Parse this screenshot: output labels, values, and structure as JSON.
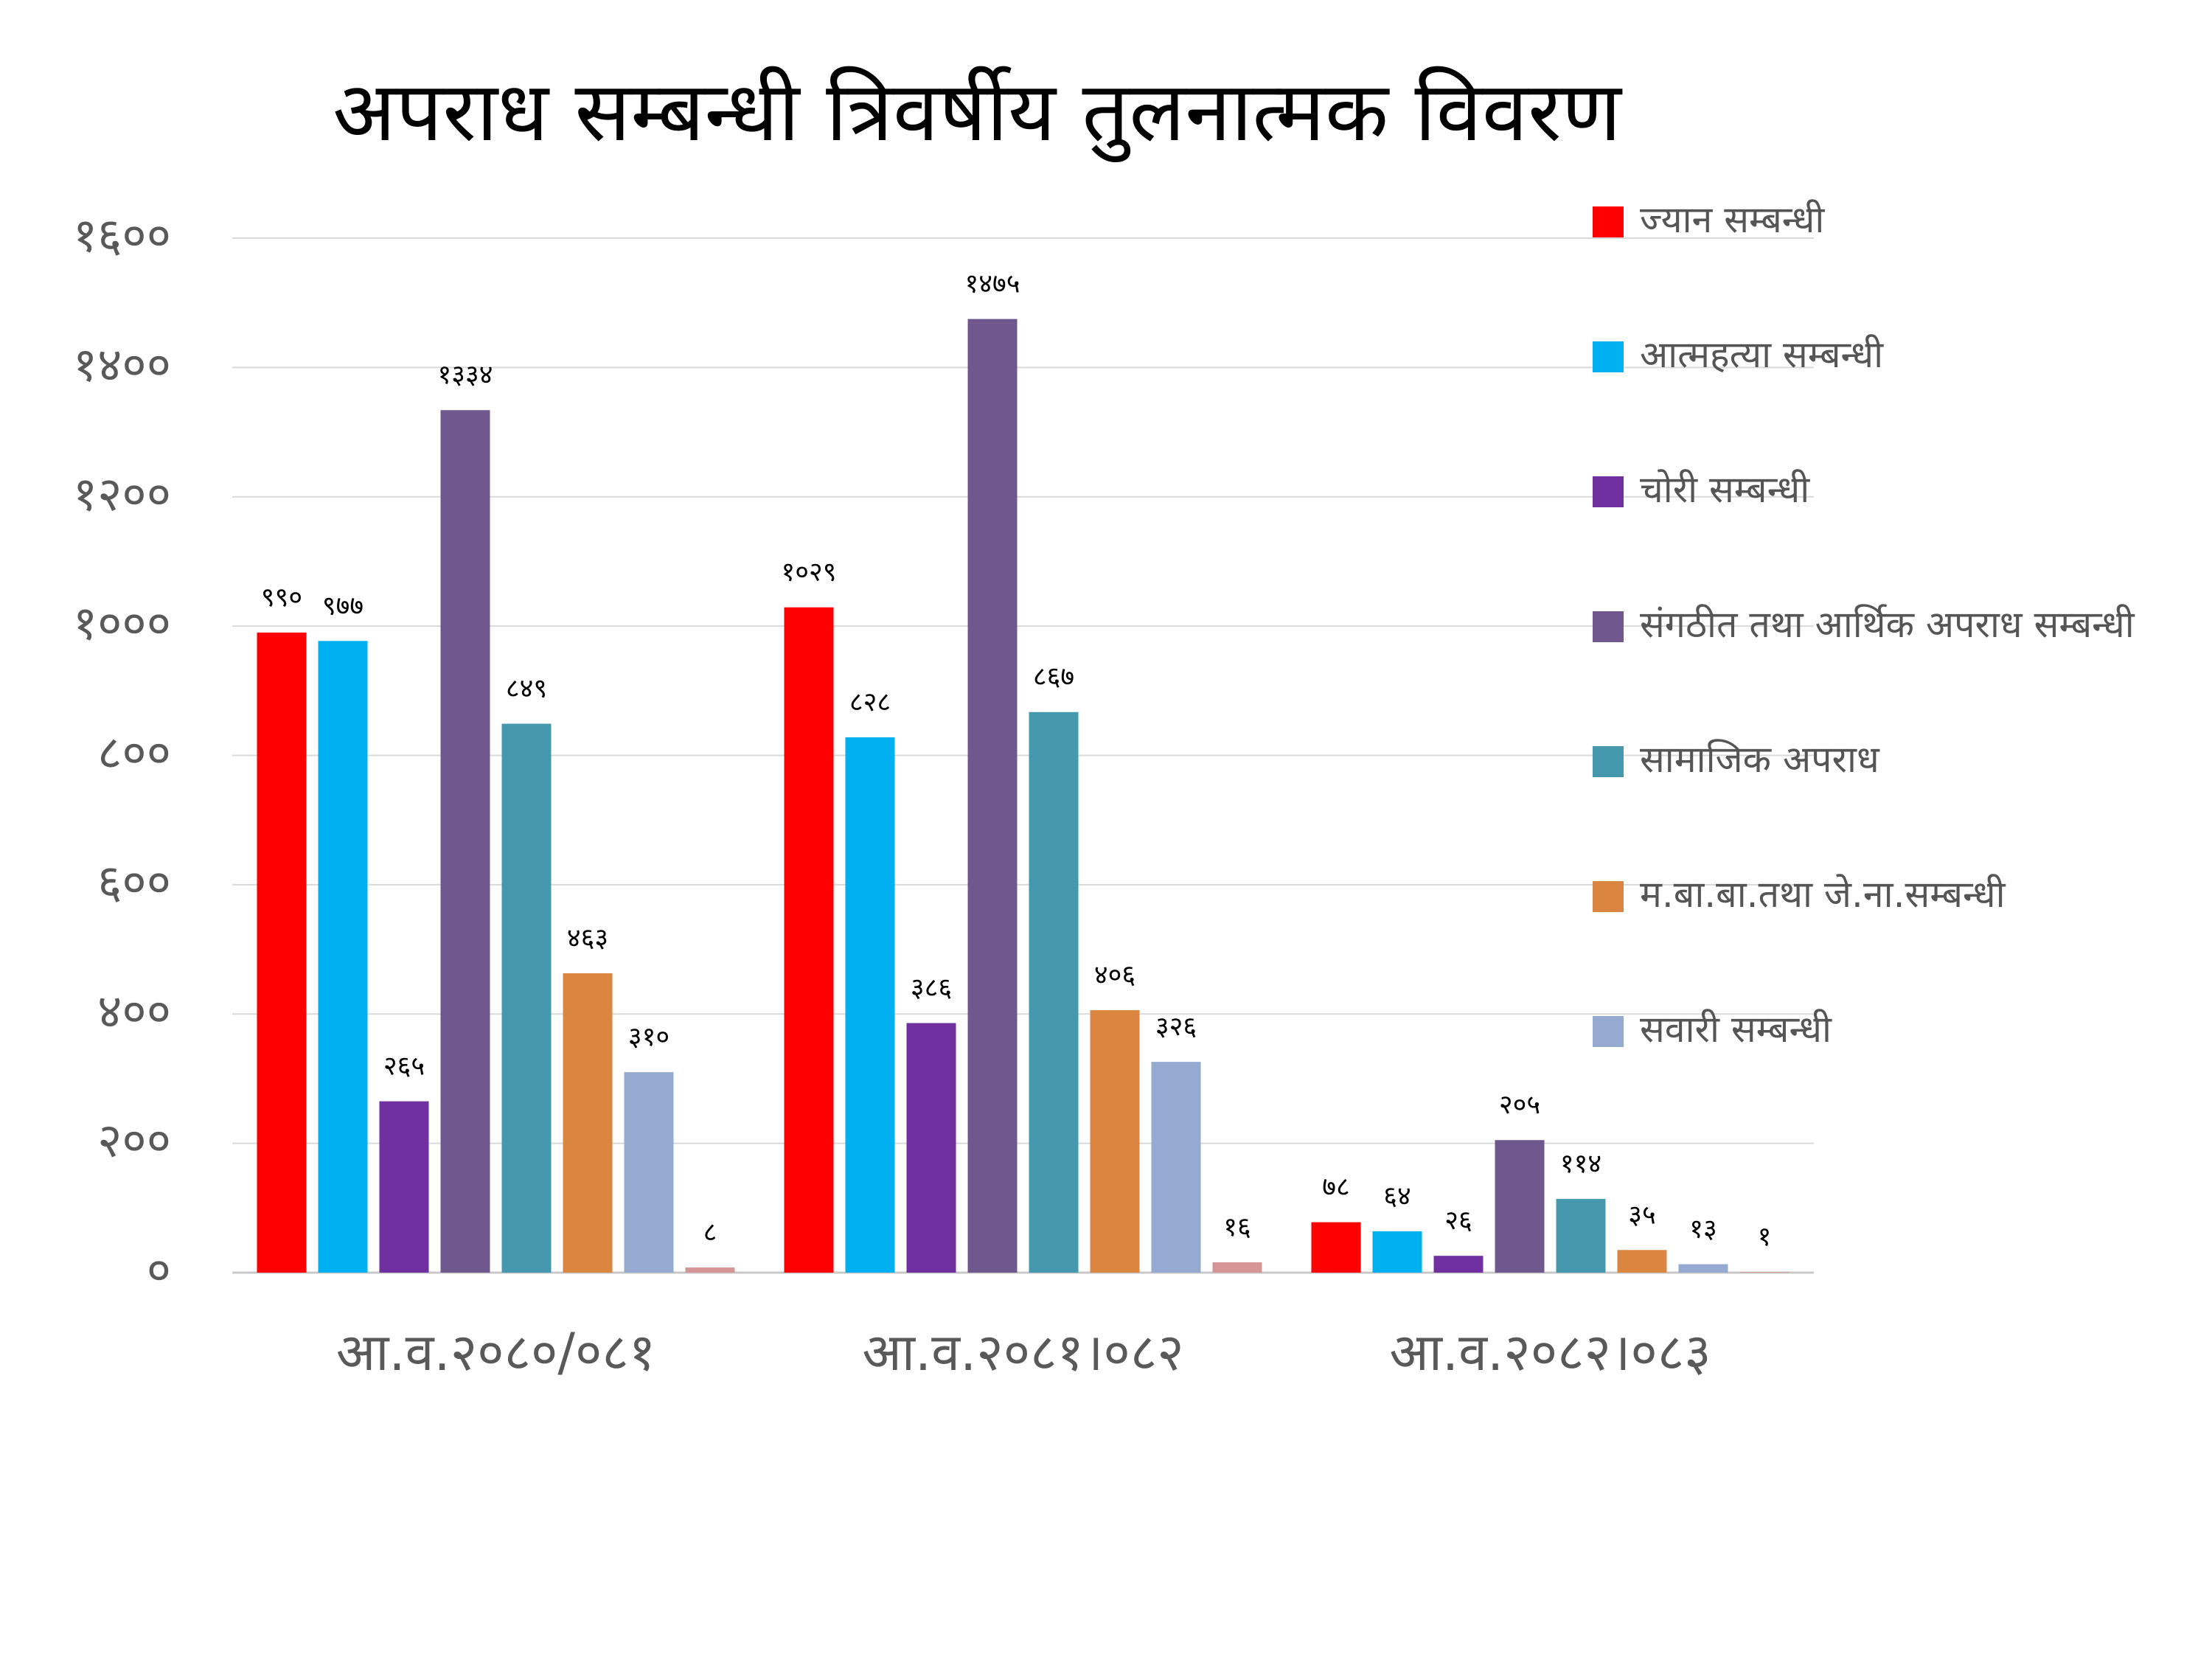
{
  "chart_data": {
    "type": "bar",
    "title": "अपराध सम्बन्धी त्रिवर्षीय तुलनात्मक विवरण",
    "categories": [
      "आ.व.२०८०/०८१",
      "आ.व.२०८१।०८२",
      "आ.व.२०८२।०८३"
    ],
    "ylim": [
      0,
      1600
    ],
    "yticks": [
      0,
      200,
      400,
      600,
      800,
      1000,
      1200,
      1400,
      1600
    ],
    "ytick_labels": [
      "०",
      "२००",
      "४००",
      "६००",
      "८००",
      "१०००",
      "१२००",
      "१४००",
      "१६००"
    ],
    "grid": true,
    "legend_position": "right",
    "series": [
      {
        "name": "ज्यान सम्बन्धी",
        "color": "#FF0000",
        "values": [
          990,
          1029,
          78
        ],
        "labels": [
          "९९०",
          "१०२९",
          "७८"
        ]
      },
      {
        "name": "आत्महत्या सम्बन्धी",
        "color": "#00B0F0",
        "values": [
          977,
          828,
          64
        ],
        "labels": [
          "९७७",
          "८२८",
          "६४"
        ]
      },
      {
        "name": "चोरी सम्बन्धी",
        "color": "#7030A0",
        "values": [
          265,
          386,
          26
        ],
        "labels": [
          "२६५",
          "३८६",
          "२६"
        ]
      },
      {
        "name": "संगठीत तथा आर्थिक अपराध सम्बन्धी",
        "color": "#70588F",
        "values": [
          1334,
          1475,
          205
        ],
        "labels": [
          "१३३४",
          "१४७५",
          "२०५"
        ]
      },
      {
        "name": "सामाजिक अपराध",
        "color": "#4598AE",
        "values": [
          849,
          867,
          114
        ],
        "labels": [
          "८४९",
          "८६७",
          "११४"
        ]
      },
      {
        "name": "म.बा.बा.तथा जे.ना.सम्बन्धी",
        "color": "#DA8540",
        "values": [
          463,
          406,
          35
        ],
        "labels": [
          "४६३",
          "४०६",
          "३५"
        ]
      },
      {
        "name": "सवारी सम्बन्धी",
        "color": "#94AAD1",
        "values": [
          310,
          326,
          13
        ],
        "labels": [
          "३१०",
          "३२६",
          "१३"
        ]
      },
      {
        "name": "",
        "color": "#D69595",
        "values": [
          8,
          16,
          1
        ],
        "labels": [
          "८",
          "१६",
          "१"
        ]
      }
    ]
  }
}
